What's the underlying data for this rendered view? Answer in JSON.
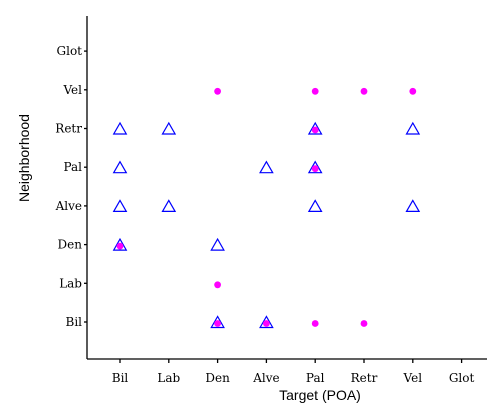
{
  "chart_data": {
    "type": "scatter",
    "xlabel": "Target (POA)",
    "ylabel": "Neighborhood",
    "x_categories": [
      "Bil",
      "Lab",
      "Den",
      "Alve",
      "Pal",
      "Retr",
      "Vel",
      "Glot"
    ],
    "y_categories": [
      "Bil",
      "Lab",
      "Den",
      "Alve",
      "Pal",
      "Retr",
      "Vel",
      "Glot"
    ],
    "grid": false,
    "series": [
      {
        "marker": "open-triangle",
        "color": "#0000ff",
        "points": [
          {
            "x": "Bil",
            "y": "Retr"
          },
          {
            "x": "Lab",
            "y": "Retr"
          },
          {
            "x": "Pal",
            "y": "Retr"
          },
          {
            "x": "Vel",
            "y": "Retr"
          },
          {
            "x": "Bil",
            "y": "Pal"
          },
          {
            "x": "Alve",
            "y": "Pal"
          },
          {
            "x": "Pal",
            "y": "Pal"
          },
          {
            "x": "Bil",
            "y": "Alve"
          },
          {
            "x": "Lab",
            "y": "Alve"
          },
          {
            "x": "Pal",
            "y": "Alve"
          },
          {
            "x": "Vel",
            "y": "Alve"
          },
          {
            "x": "Bil",
            "y": "Den"
          },
          {
            "x": "Den",
            "y": "Den"
          },
          {
            "x": "Den",
            "y": "Bil"
          },
          {
            "x": "Alve",
            "y": "Bil"
          }
        ]
      },
      {
        "marker": "filled-dot",
        "color": "#ff00ff",
        "points": [
          {
            "x": "Den",
            "y": "Vel"
          },
          {
            "x": "Pal",
            "y": "Vel"
          },
          {
            "x": "Retr",
            "y": "Vel"
          },
          {
            "x": "Vel",
            "y": "Vel"
          },
          {
            "x": "Pal",
            "y": "Retr"
          },
          {
            "x": "Pal",
            "y": "Pal"
          },
          {
            "x": "Bil",
            "y": "Den"
          },
          {
            "x": "Den",
            "y": "Lab"
          },
          {
            "x": "Den",
            "y": "Bil"
          },
          {
            "x": "Alve",
            "y": "Bil"
          },
          {
            "x": "Pal",
            "y": "Bil"
          },
          {
            "x": "Retr",
            "y": "Bil"
          }
        ]
      }
    ]
  }
}
